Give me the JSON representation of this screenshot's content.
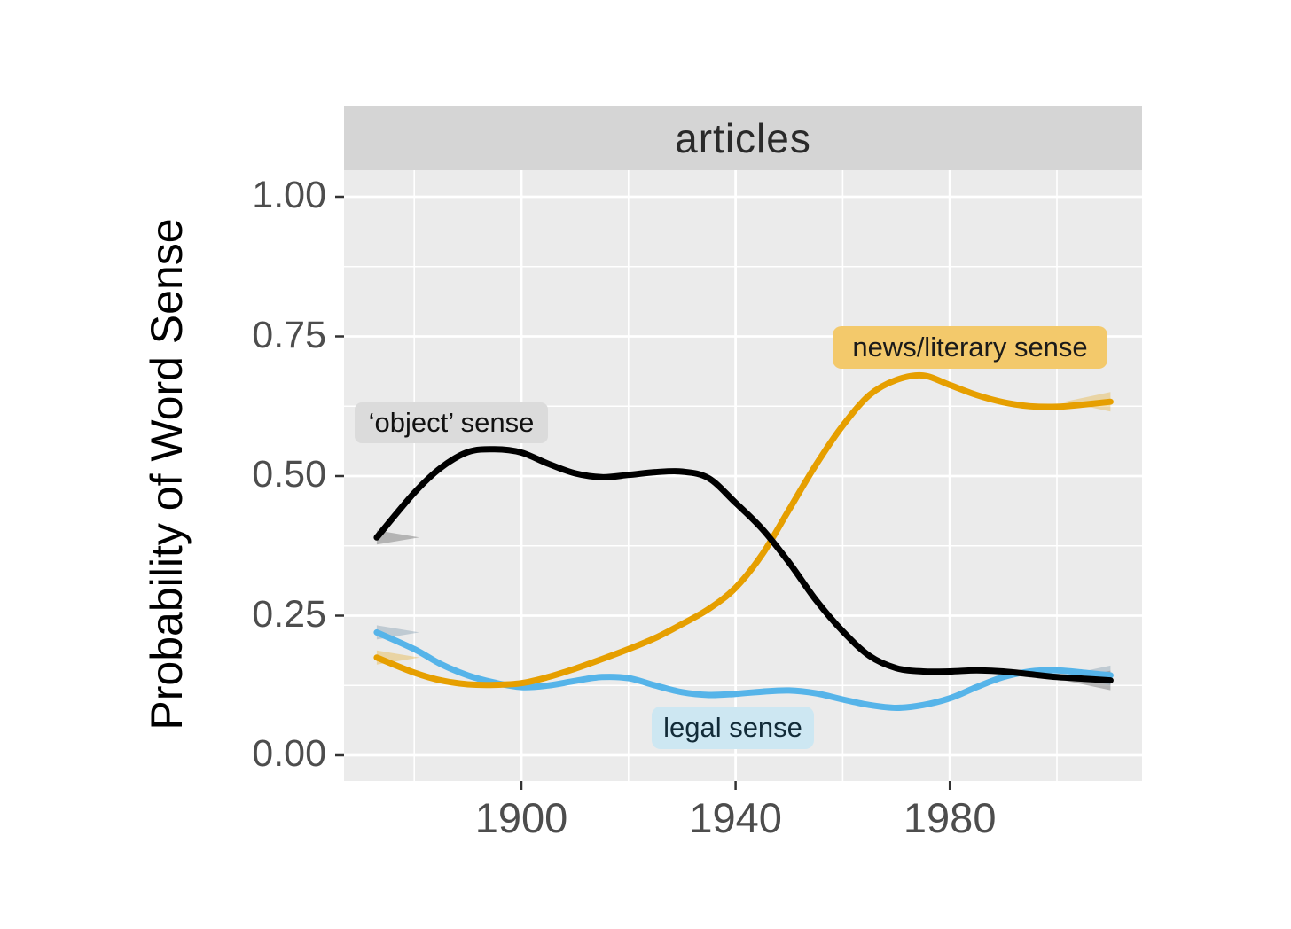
{
  "chart_data": {
    "type": "line",
    "title": "articles",
    "xlabel": "",
    "ylabel": "Probability of Word Sense",
    "legend_position": "inline-labels",
    "grid": "white major and minor gridlines on light gray panel",
    "x": [
      1873,
      1880,
      1885,
      1890,
      1895,
      1900,
      1905,
      1910,
      1915,
      1920,
      1925,
      1930,
      1935,
      1940,
      1945,
      1950,
      1955,
      1960,
      1965,
      1970,
      1975,
      1980,
      1985,
      1990,
      1995,
      2000,
      2005,
      2010
    ],
    "series": [
      {
        "id": "object",
        "name": "'object' sense",
        "color": "#000000",
        "values": [
          0.39,
          0.47,
          0.515,
          0.543,
          0.548,
          0.542,
          0.522,
          0.505,
          0.498,
          0.502,
          0.507,
          0.508,
          0.496,
          0.452,
          0.405,
          0.345,
          0.278,
          0.222,
          0.178,
          0.156,
          0.15,
          0.15,
          0.152,
          0.15,
          0.145,
          0.14,
          0.137,
          0.134
        ]
      },
      {
        "id": "news",
        "name": "news/literary sense",
        "color": "#E69F00",
        "values": [
          0.175,
          0.148,
          0.134,
          0.127,
          0.126,
          0.129,
          0.14,
          0.155,
          0.172,
          0.19,
          0.21,
          0.235,
          0.262,
          0.3,
          0.36,
          0.44,
          0.52,
          0.59,
          0.645,
          0.672,
          0.68,
          0.663,
          0.645,
          0.632,
          0.625,
          0.624,
          0.628,
          0.633
        ]
      },
      {
        "id": "legal",
        "name": "legal sense",
        "color": "#56B4E9",
        "values": [
          0.22,
          0.19,
          0.163,
          0.143,
          0.13,
          0.122,
          0.125,
          0.133,
          0.14,
          0.138,
          0.125,
          0.113,
          0.108,
          0.11,
          0.114,
          0.116,
          0.111,
          0.1,
          0.09,
          0.085,
          0.09,
          0.102,
          0.122,
          0.14,
          0.15,
          0.152,
          0.148,
          0.143
        ]
      }
    ],
    "x_axis": {
      "ticks": [
        {
          "label": "1900",
          "value": 1900
        },
        {
          "label": "1940",
          "value": 1940
        },
        {
          "label": "1980",
          "value": 1980
        }
      ],
      "minor_gridlines": [
        1880,
        1920,
        1960,
        2000
      ],
      "range": [
        1867,
        2016
      ]
    },
    "y_axis": {
      "ticks": [
        {
          "label": "1.00",
          "value": 1.0
        },
        {
          "label": "0.75",
          "value": 0.75
        },
        {
          "label": "0.50",
          "value": 0.5
        },
        {
          "label": "0.25",
          "value": 0.25
        },
        {
          "label": "0.00",
          "value": 0.0
        }
      ],
      "minor_gridlines": [
        0.125,
        0.375,
        0.625,
        0.875
      ],
      "range": [
        0,
        1
      ]
    },
    "annotations": [
      {
        "id": "object",
        "text": "‘object’ sense",
        "bg": "#dbdbdb",
        "text_color": "#111111"
      },
      {
        "id": "news",
        "text": "news/literary sense",
        "bg": "#f3c96b",
        "text_color": "#1a1a1a"
      },
      {
        "id": "legal",
        "text": "legal sense",
        "bg": "#cde7f2",
        "text_color": "#122b38"
      }
    ],
    "colors": {
      "panel_bg": "#ebebeb",
      "strip_bg": "#d5d5d5",
      "gridline": "#ffffff",
      "tick_label": "#4d4d4d",
      "tick_mark": "#333333",
      "axis_title": "#000000"
    }
  }
}
